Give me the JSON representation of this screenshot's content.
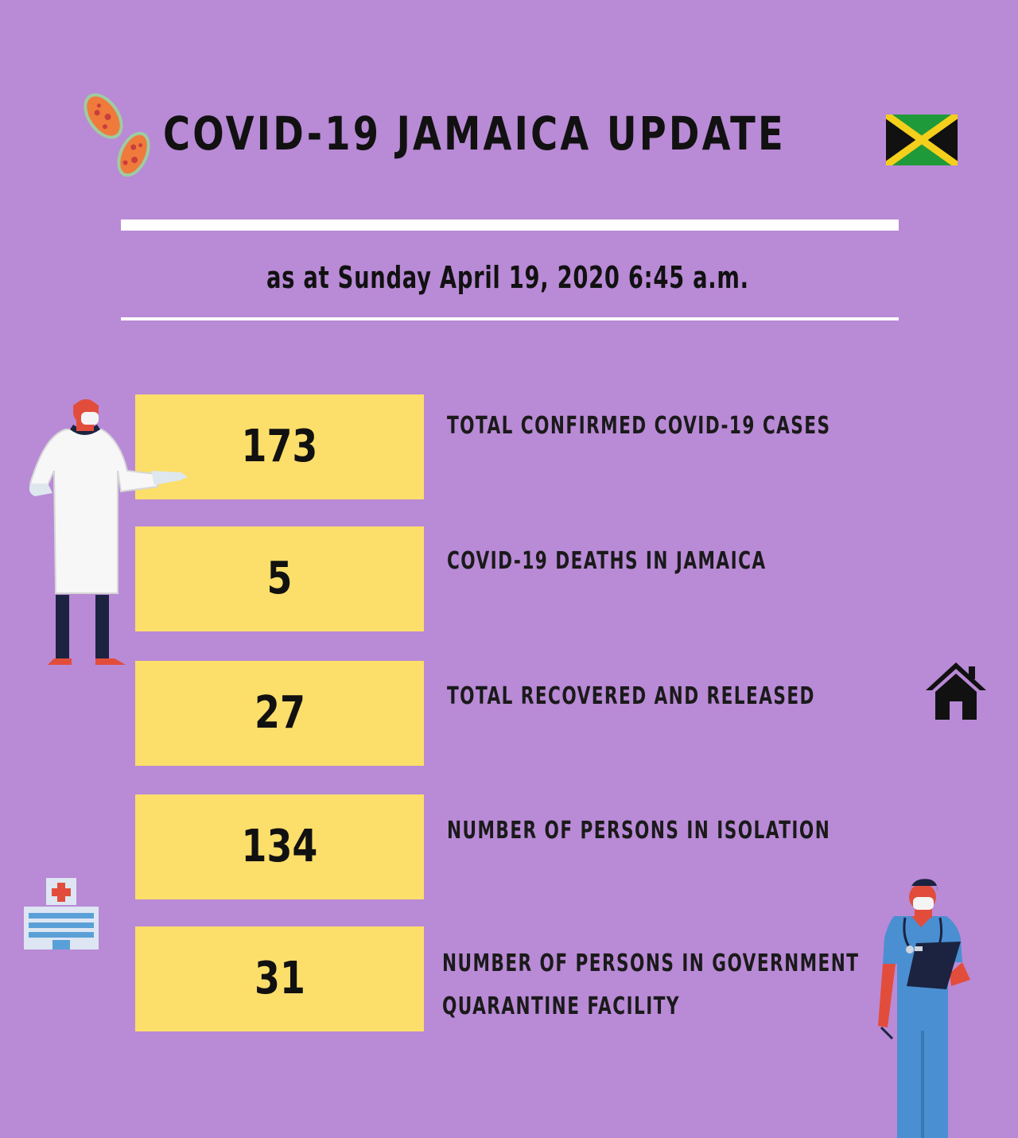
{
  "header": {
    "title": "COVID-19 JAMAICA UPDATE",
    "date_line": "as at Sunday April 19, 2020 6:45 a.m."
  },
  "stats": [
    {
      "value": "173",
      "label_lines": [
        "TOTAL CONFIRMED COVID-19 CASES"
      ]
    },
    {
      "value": "5",
      "label_lines": [
        "COVID-19 DEATHS IN JAMAICA"
      ]
    },
    {
      "value": "27",
      "label_lines": [
        "TOTAL RECOVERED AND RELEASED"
      ]
    },
    {
      "value": "134",
      "label_lines": [
        "NUMBER OF PERSONS IN ISOLATION"
      ]
    },
    {
      "value": "31",
      "label_lines": [
        "NUMBER OF PERSONS IN GOVERNMENT",
        "QUARANTINE FACILITY"
      ]
    }
  ],
  "icons": {
    "virus": "virus-cells-icon",
    "flag": "jamaica-flag-icon",
    "doctor": "doctor-in-lab-coat-illustration",
    "house": "house-icon",
    "hospital": "hospital-building-icon",
    "nurse": "nurse-with-clipboard-illustration"
  },
  "colors": {
    "background": "#b98ad6",
    "stat_box": "#fcde6a",
    "text": "#111111",
    "rule": "#ffffff",
    "flag_green": "#1f9a3a",
    "flag_gold": "#f4cf1c",
    "flag_black": "#111111"
  }
}
